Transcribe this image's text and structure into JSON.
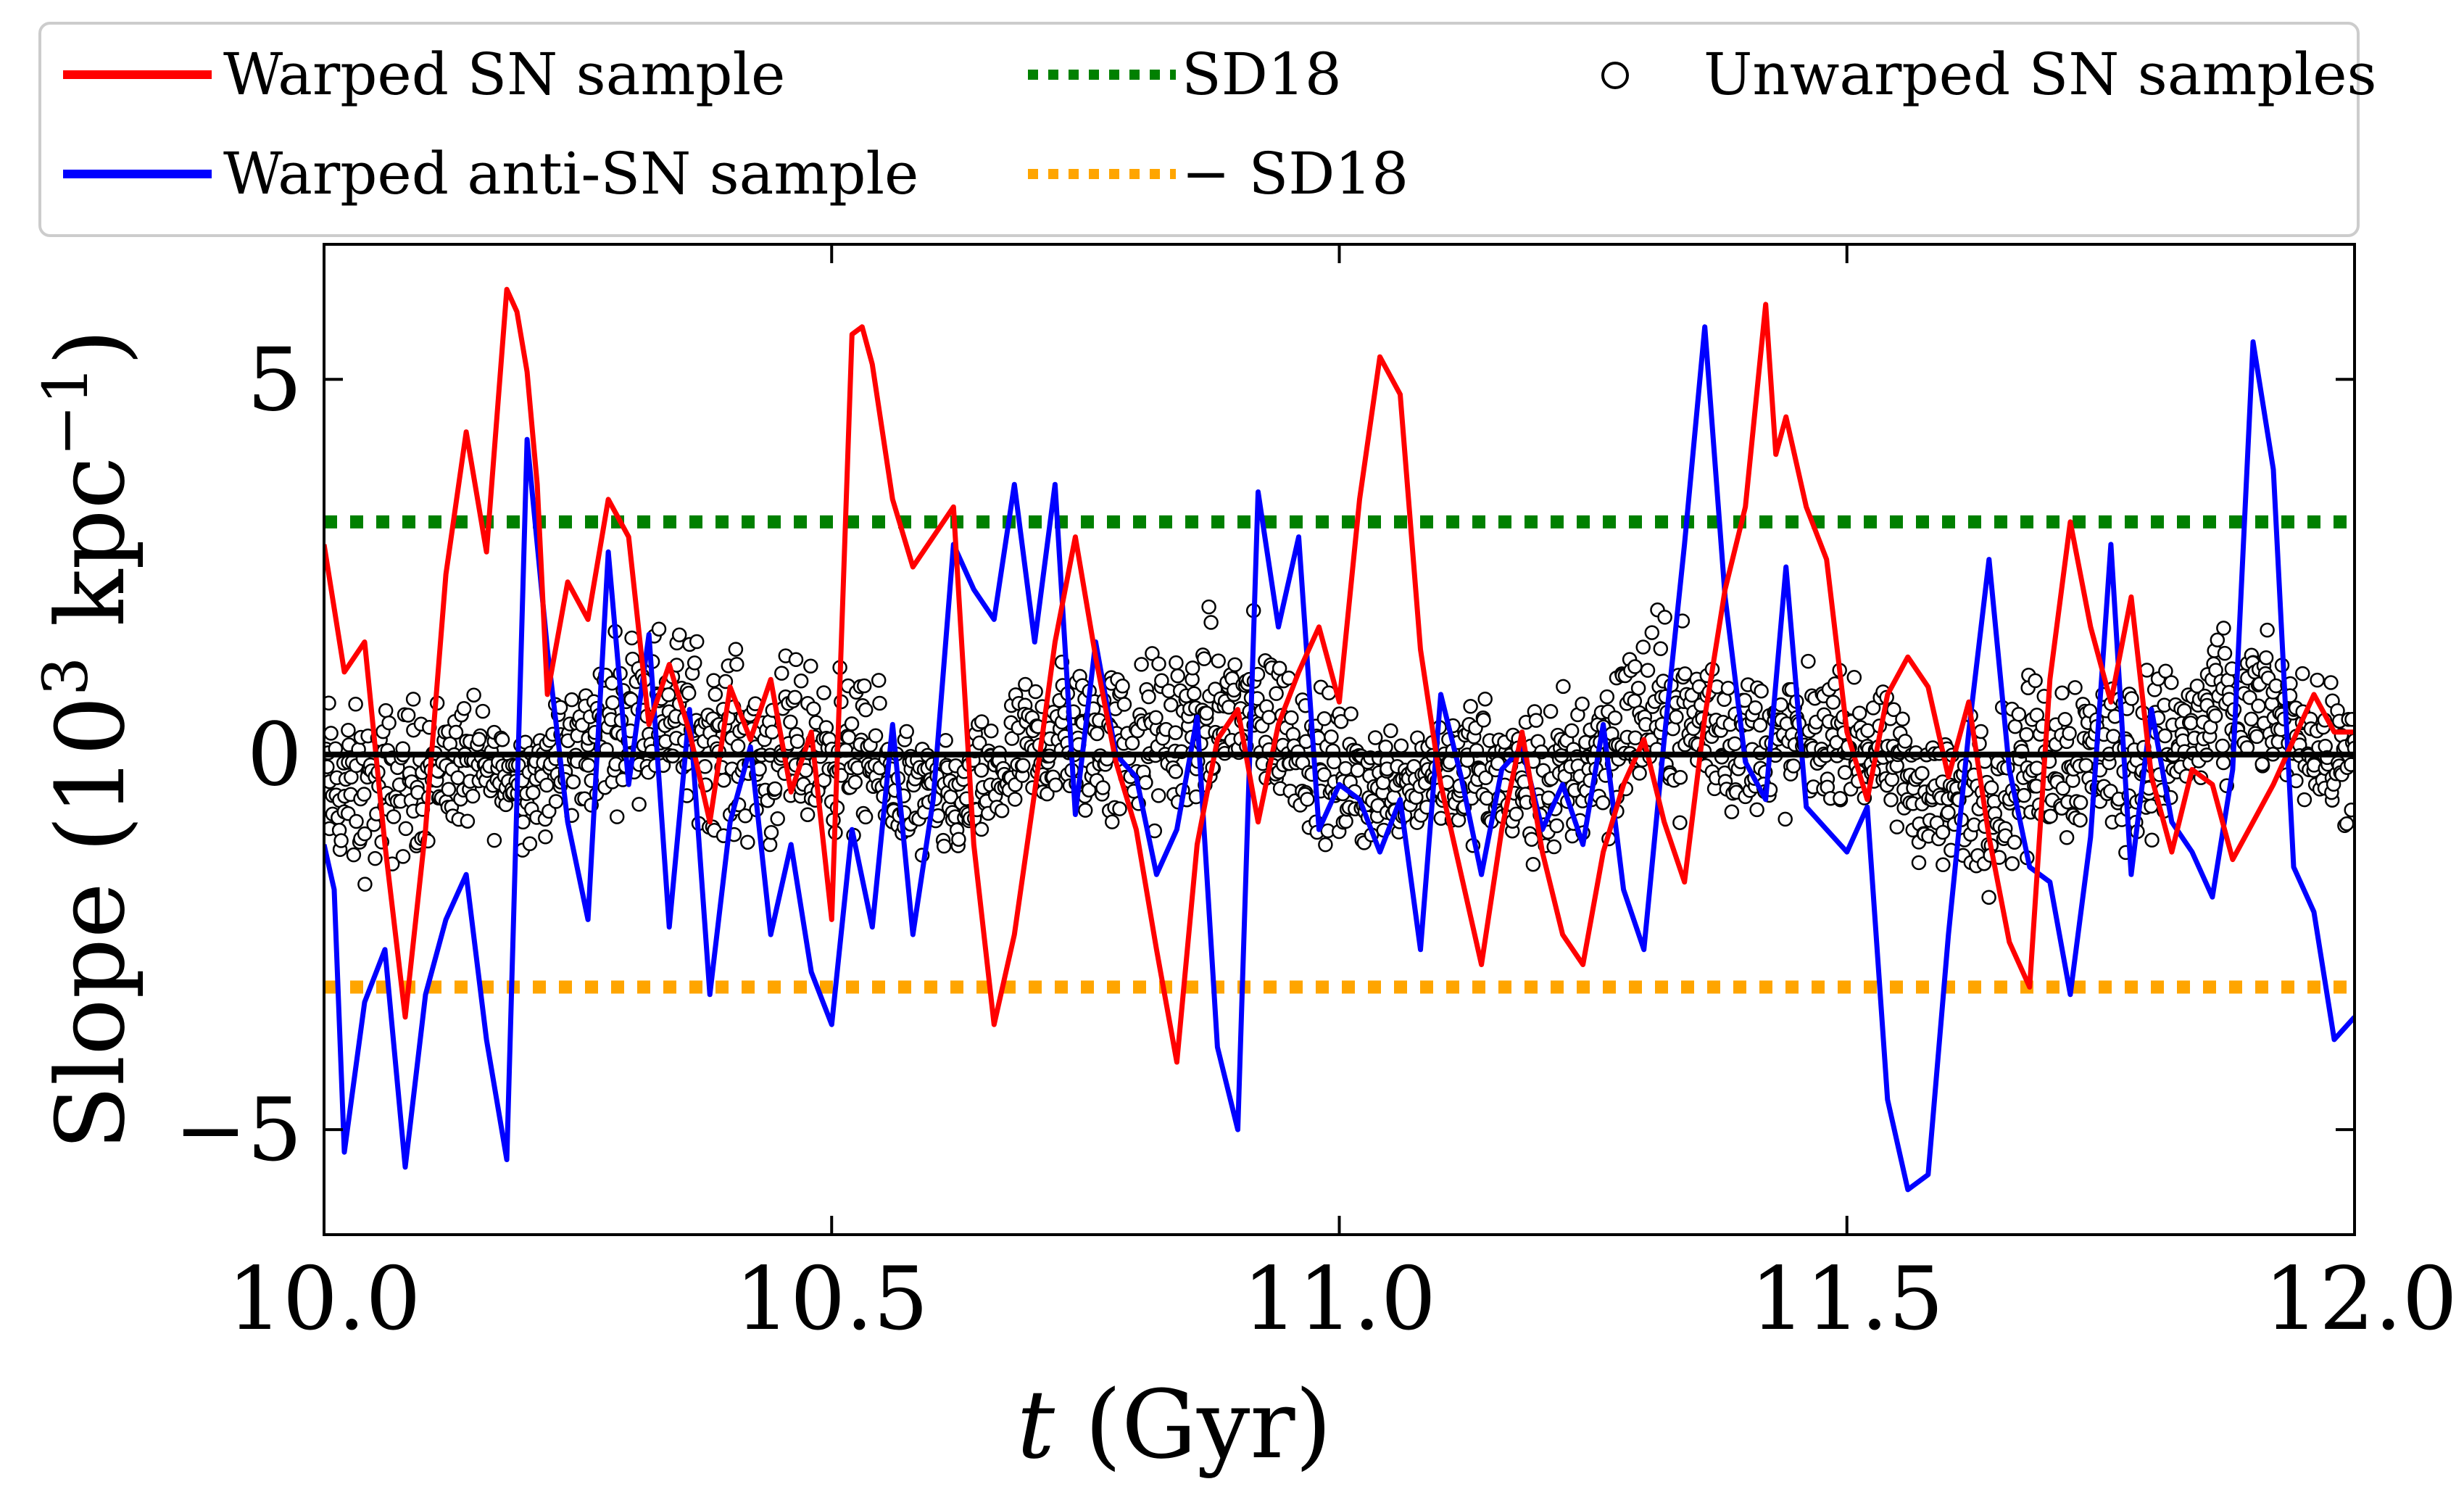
{
  "chart_data": {
    "type": "line",
    "title": "",
    "xlabel": "t (Gyr)",
    "ylabel": "Slope (10^3 kpc^-1)",
    "xlim": [
      10.0,
      12.0
    ],
    "ylim": [
      -6.4,
      6.8
    ],
    "x_ticks": [
      10.0,
      10.5,
      11.0,
      11.5,
      12.0
    ],
    "x_tick_labels": [
      "10.0",
      "10.5",
      "11.0",
      "11.5",
      "12.0"
    ],
    "y_ticks": [
      -5,
      0,
      5
    ],
    "y_tick_labels": [
      "−5",
      "0",
      "5"
    ],
    "zero_line": 0,
    "legend": {
      "placement": "top, above plot",
      "entries": [
        {
          "label": "Warped SN sample",
          "style": "solid",
          "color": "#ff0000"
        },
        {
          "label": "Warped anti-SN sample",
          "style": "solid",
          "color": "#0000ff"
        },
        {
          "label": "SD18",
          "style": "dotted",
          "color": "#008000"
        },
        {
          "label": "− SD18",
          "style": "dotted",
          "color": "#ffa500"
        },
        {
          "label": "Unwarped SN samples",
          "style": "open-circle",
          "color": "#000000"
        }
      ]
    },
    "series": [
      {
        "name": "Warped SN sample",
        "color": "#ff0000",
        "x": [
          10.0,
          10.02,
          10.04,
          10.06,
          10.08,
          10.1,
          10.12,
          10.14,
          10.16,
          10.18,
          10.19,
          10.2,
          10.21,
          10.22,
          10.24,
          10.26,
          10.28,
          10.3,
          10.32,
          10.34,
          10.36,
          10.38,
          10.4,
          10.42,
          10.44,
          10.46,
          10.48,
          10.5,
          10.52,
          10.53,
          10.54,
          10.56,
          10.58,
          10.6,
          10.62,
          10.64,
          10.66,
          10.68,
          10.7,
          10.72,
          10.74,
          10.76,
          10.78,
          10.8,
          10.82,
          10.84,
          10.86,
          10.88,
          10.9,
          10.92,
          10.94,
          10.96,
          10.98,
          11.0,
          11.02,
          11.04,
          11.06,
          11.08,
          11.1,
          11.12,
          11.14,
          11.16,
          11.18,
          11.2,
          11.22,
          11.24,
          11.26,
          11.28,
          11.3,
          11.32,
          11.34,
          11.36,
          11.38,
          11.4,
          11.42,
          11.43,
          11.44,
          11.46,
          11.48,
          11.5,
          11.52,
          11.54,
          11.56,
          11.58,
          11.6,
          11.62,
          11.64,
          11.66,
          11.68,
          11.7,
          11.72,
          11.74,
          11.76,
          11.78,
          11.8,
          11.82,
          11.84,
          11.86,
          11.88,
          11.9,
          11.92,
          11.94,
          11.96,
          11.98,
          12.0
        ],
        "values": [
          2.8,
          1.1,
          1.5,
          -1.2,
          -3.5,
          -1.0,
          2.4,
          4.3,
          2.7,
          6.2,
          5.9,
          5.1,
          3.6,
          0.8,
          2.3,
          1.8,
          3.4,
          2.9,
          0.4,
          1.2,
          0.3,
          -0.9,
          0.9,
          0.2,
          1.0,
          -0.5,
          0.3,
          -2.2,
          5.6,
          5.7,
          5.2,
          3.4,
          2.5,
          2.9,
          3.3,
          -1.2,
          -3.6,
          -2.4,
          -0.5,
          1.5,
          2.9,
          1.3,
          -0.1,
          -1.0,
          -2.6,
          -4.1,
          -1.2,
          0.2,
          0.6,
          -0.9,
          0.4,
          1.1,
          1.7,
          0.7,
          3.4,
          5.3,
          4.8,
          1.4,
          -0.4,
          -1.6,
          -2.8,
          -1.0,
          0.3,
          -1.3,
          -2.4,
          -2.8,
          -1.3,
          -0.4,
          0.2,
          -0.9,
          -1.7,
          0.5,
          2.2,
          3.3,
          6.0,
          4.0,
          4.5,
          3.3,
          2.6,
          0.3,
          -0.6,
          0.8,
          1.3,
          0.9,
          -0.3,
          0.7,
          -1.1,
          -2.5,
          -3.1,
          1.0,
          3.1,
          1.7,
          0.7,
          2.1,
          -0.3,
          -1.3,
          -0.2,
          -0.4,
          -1.4,
          -0.9,
          -0.4,
          0.2,
          0.8,
          0.3,
          0.3
        ]
      },
      {
        "name": "Warped anti-SN sample",
        "color": "#0000ff",
        "x": [
          10.0,
          10.01,
          10.02,
          10.04,
          10.06,
          10.08,
          10.1,
          10.12,
          10.14,
          10.16,
          10.18,
          10.2,
          10.22,
          10.24,
          10.26,
          10.28,
          10.3,
          10.32,
          10.34,
          10.36,
          10.38,
          10.4,
          10.42,
          10.44,
          10.46,
          10.48,
          10.5,
          10.52,
          10.54,
          10.56,
          10.58,
          10.6,
          10.62,
          10.64,
          10.66,
          10.68,
          10.7,
          10.72,
          10.74,
          10.76,
          10.78,
          10.8,
          10.82,
          10.84,
          10.86,
          10.88,
          10.9,
          10.92,
          10.94,
          10.96,
          10.98,
          11.0,
          11.02,
          11.04,
          11.06,
          11.08,
          11.1,
          11.12,
          11.14,
          11.16,
          11.18,
          11.2,
          11.22,
          11.24,
          11.26,
          11.28,
          11.3,
          11.32,
          11.34,
          11.36,
          11.38,
          11.4,
          11.42,
          11.44,
          11.46,
          11.48,
          11.5,
          11.52,
          11.54,
          11.56,
          11.58,
          11.6,
          11.62,
          11.64,
          11.66,
          11.68,
          11.7,
          11.72,
          11.74,
          11.76,
          11.78,
          11.8,
          11.82,
          11.84,
          11.86,
          11.88,
          11.9,
          11.92,
          11.94,
          11.96,
          11.98,
          12.0
        ],
        "values": [
          -1.2,
          -1.8,
          -5.3,
          -3.3,
          -2.6,
          -5.5,
          -3.2,
          -2.2,
          -1.6,
          -3.8,
          -5.4,
          4.2,
          1.4,
          -0.9,
          -2.2,
          2.7,
          -0.4,
          1.6,
          -2.3,
          0.6,
          -3.2,
          -0.9,
          0.1,
          -2.4,
          -1.2,
          -2.9,
          -3.6,
          -1.0,
          -2.3,
          0.4,
          -2.4,
          -0.6,
          2.8,
          2.2,
          1.8,
          3.6,
          1.5,
          3.6,
          -0.8,
          1.5,
          0.0,
          -0.3,
          -1.6,
          -1.0,
          0.5,
          -3.9,
          -5.0,
          3.5,
          1.7,
          2.9,
          -1.0,
          -0.4,
          -0.6,
          -1.3,
          -0.6,
          -2.6,
          0.8,
          -0.3,
          -1.6,
          -0.2,
          0.1,
          -1.0,
          -0.4,
          -1.2,
          0.4,
          -1.8,
          -2.6,
          0.2,
          2.8,
          5.7,
          2.1,
          -0.1,
          -0.6,
          2.5,
          -0.7,
          -1.0,
          -1.3,
          -0.7,
          -4.6,
          -5.8,
          -5.6,
          -2.4,
          0.3,
          2.6,
          -0.2,
          -1.5,
          -1.7,
          -3.2,
          -1.1,
          2.8,
          -1.6,
          0.6,
          -0.9,
          -1.3,
          -1.9,
          -0.2,
          5.5,
          3.8,
          -1.5,
          -2.1,
          -3.8,
          -3.5
        ]
      },
      {
        "name": "SD18",
        "color": "#008000",
        "style": "dotted",
        "x": [
          10.0,
          12.0
        ],
        "values": [
          3.1,
          3.1
        ]
      },
      {
        "name": "− SD18",
        "color": "#ffa500",
        "style": "dotted",
        "x": [
          10.0,
          12.0
        ],
        "values": [
          -3.1,
          -3.1
        ]
      }
    ],
    "scatter": {
      "name": "Unwarped SN samples",
      "marker": "open-circle",
      "x_range": [
        10.0,
        12.0
      ],
      "typical_range": [
        -2.3,
        2.0
      ],
      "count_approx": 2000
    }
  }
}
